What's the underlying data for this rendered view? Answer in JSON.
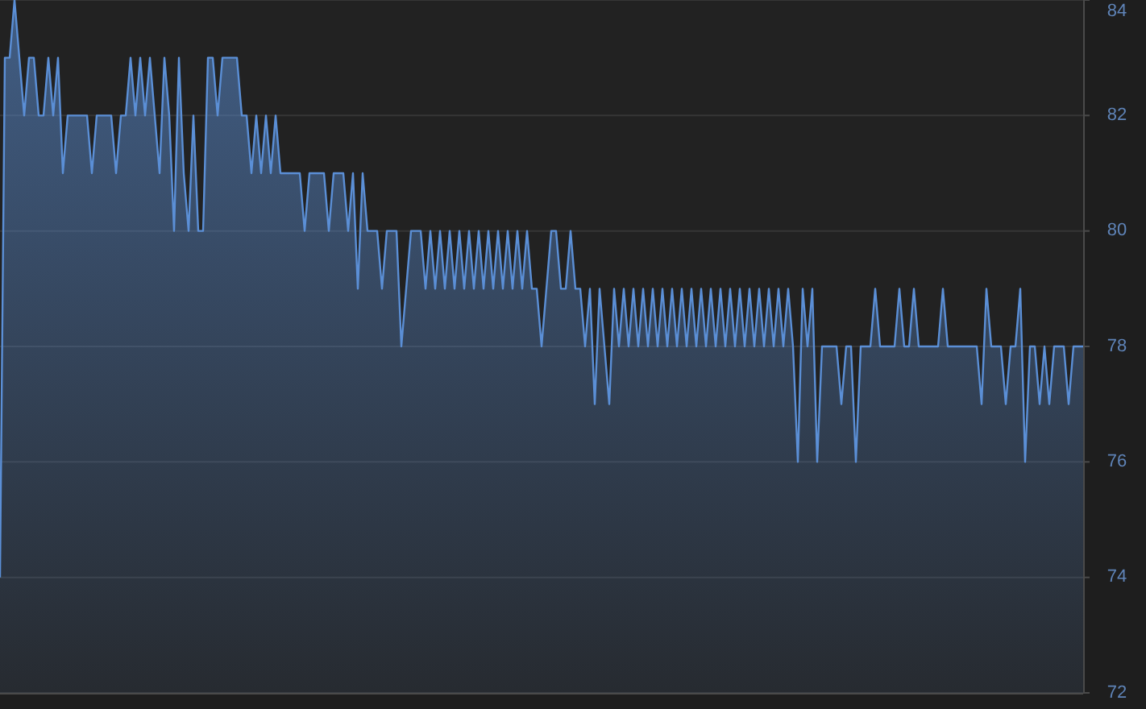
{
  "chart_data": {
    "type": "area",
    "categories": [
      null,
      null,
      null,
      null,
      null,
      null,
      null,
      null,
      null,
      null,
      null,
      null,
      null,
      null,
      null,
      null,
      null,
      null,
      null,
      null,
      null,
      null,
      null,
      null,
      null,
      null,
      null,
      null,
      null,
      null,
      null,
      null,
      null,
      null,
      null,
      null,
      null,
      null,
      null,
      null,
      null,
      null,
      null,
      null,
      null,
      null,
      null,
      null,
      null,
      null,
      null,
      null,
      null,
      null,
      null,
      null,
      null,
      null,
      null,
      null,
      null,
      null,
      null,
      null,
      null,
      null,
      null,
      null,
      null,
      null,
      null,
      null,
      null,
      null,
      null,
      null,
      null,
      null,
      null,
      null,
      null,
      null,
      null,
      null,
      null,
      null,
      null,
      null,
      null,
      null,
      null,
      null,
      null,
      null,
      null,
      null,
      null,
      null,
      null,
      null,
      null,
      null,
      null,
      null,
      null,
      null,
      null,
      null,
      null,
      null,
      null,
      null,
      null,
      null,
      null,
      null,
      null,
      null,
      null,
      null,
      null,
      null,
      null,
      null,
      null,
      null,
      null,
      null,
      null,
      null,
      null,
      null,
      null,
      null,
      null,
      null,
      null,
      null,
      null,
      null,
      null,
      null,
      null,
      null,
      null,
      null,
      null,
      null,
      null,
      null,
      null,
      null,
      null,
      null,
      null,
      null,
      null,
      null,
      null,
      null,
      null,
      null,
      null,
      null,
      null,
      null,
      null,
      null,
      null,
      null,
      null,
      null,
      null,
      null,
      null,
      null,
      null,
      null,
      null,
      null,
      null,
      null,
      null,
      null,
      null,
      null,
      null,
      null,
      null,
      null,
      null,
      null,
      null,
      null,
      null,
      null,
      null,
      null,
      null,
      null,
      null,
      null,
      null,
      null,
      null,
      null,
      null,
      null,
      null,
      null,
      null,
      null,
      null,
      null,
      null,
      null,
      null,
      null,
      null,
      null,
      null,
      null,
      null,
      null,
      null
    ],
    "ylim": [
      72,
      84
    ],
    "yticks": [
      72,
      74,
      76,
      78,
      80,
      82,
      84
    ],
    "grid": "y",
    "tick_labels": "y",
    "series": [
      {
        "color": "#5b8fd6",
        "values": [
          74,
          83,
          83,
          84,
          83,
          82,
          83,
          83,
          82,
          82,
          83,
          82,
          83,
          81,
          82,
          82,
          82,
          82,
          82,
          81,
          82,
          82,
          82,
          82,
          81,
          82,
          82,
          83,
          82,
          83,
          82,
          83,
          82,
          81,
          83,
          82,
          80,
          83,
          81,
          80,
          82,
          80,
          80,
          83,
          83,
          82,
          83,
          83,
          83,
          83,
          82,
          82,
          81,
          82,
          81,
          82,
          81,
          82,
          81,
          81,
          81,
          81,
          81,
          80,
          81,
          81,
          81,
          81,
          80,
          81,
          81,
          81,
          80,
          81,
          79,
          81,
          80,
          80,
          80,
          79,
          80,
          80,
          80,
          78,
          79,
          80,
          80,
          80,
          79,
          80,
          79,
          80,
          79,
          80,
          79,
          80,
          79,
          80,
          79,
          80,
          79,
          80,
          79,
          80,
          79,
          80,
          79,
          80,
          79,
          80,
          79,
          79,
          78,
          79,
          80,
          80,
          79,
          79,
          80,
          79,
          79,
          78,
          79,
          77,
          79,
          78,
          77,
          79,
          78,
          79,
          78,
          79,
          78,
          79,
          78,
          79,
          78,
          79,
          78,
          79,
          78,
          79,
          78,
          79,
          78,
          79,
          78,
          79,
          78,
          79,
          78,
          79,
          78,
          79,
          78,
          79,
          78,
          79,
          78,
          79,
          78,
          79,
          78,
          79,
          78,
          76,
          79,
          78,
          79,
          76,
          78,
          78,
          78,
          78,
          77,
          78,
          78,
          76,
          78,
          78,
          78,
          79,
          78,
          78,
          78,
          78,
          79,
          78,
          78,
          79,
          78,
          78,
          78,
          78,
          78,
          79,
          78,
          78,
          78,
          78,
          78,
          78,
          78,
          77,
          79,
          78,
          78,
          78,
          77,
          78,
          78,
          79,
          76,
          78,
          78,
          77,
          78,
          77,
          78,
          78,
          78,
          77,
          78,
          78,
          78
        ]
      }
    ]
  }
}
